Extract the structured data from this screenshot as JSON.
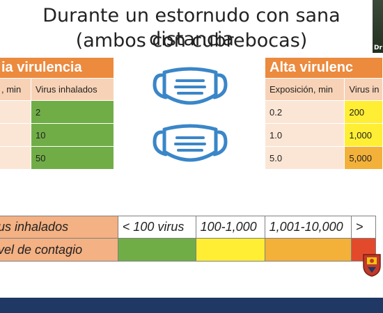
{
  "slide": {
    "title_line1": "Durante un estornudo con sana distancia",
    "title_line2": "(ambos con cubrebocas)"
  },
  "video": {
    "label": "Dr"
  },
  "left_table": {
    "header": "ia virulencia",
    "col1": ", min",
    "col2": "Virus inhalados",
    "rows": [
      {
        "exp": "",
        "virus": "2"
      },
      {
        "exp": "",
        "virus": "10"
      },
      {
        "exp": "",
        "virus": "50"
      }
    ]
  },
  "right_table": {
    "header": "Alta virulenc",
    "col1": "Exposición, min",
    "col2": "Virus in",
    "rows": [
      {
        "exp": "0.2",
        "virus": "200"
      },
      {
        "exp": "1.0",
        "virus": "1,000"
      },
      {
        "exp": "5.0",
        "virus": "5,000"
      }
    ]
  },
  "legend": {
    "row1_label": "us inhalados",
    "row2_label": "vel de contagio",
    "ranges": [
      "< 100 virus",
      "100-1,000",
      "1,001-10,000",
      ">"
    ]
  },
  "colors": {
    "green": "#70ad47",
    "yellow": "#ffee33",
    "orange": "#f3b13a",
    "red": "#e34a2c",
    "header_orange": "#ec8a3e",
    "mask_blue": "#3a86c8",
    "bottom_bar": "#1f3864"
  },
  "icons": [
    "face-mask-icon",
    "face-mask-icon",
    "university-emblem-icon"
  ]
}
